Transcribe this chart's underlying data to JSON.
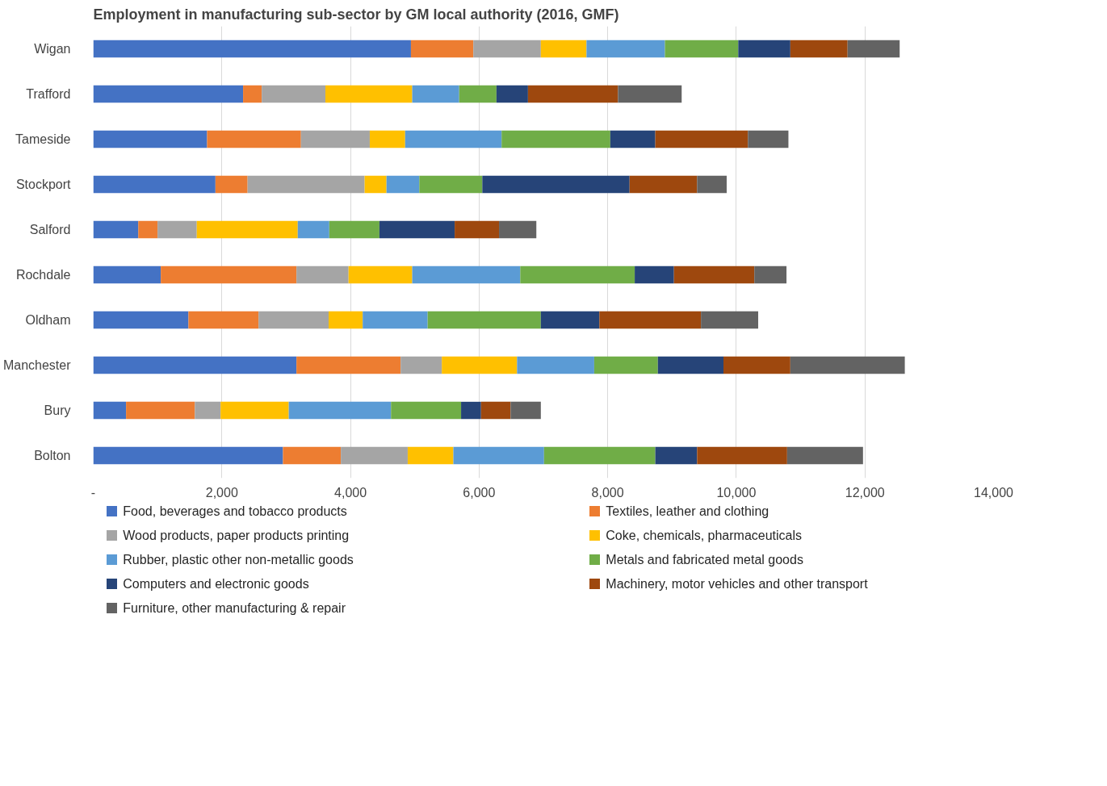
{
  "chart_data": {
    "type": "bar",
    "orientation": "horizontal",
    "stacked": true,
    "title": "Employment in manufacturing sub-sector by GM local authority (2016, GMF)",
    "categories": [
      "Wigan",
      "Trafford",
      "Tameside",
      "Stockport",
      "Salford",
      "Rochdale",
      "Oldham",
      "Manchester",
      "Bury",
      "Bolton"
    ],
    "xlim": [
      0,
      14000
    ],
    "xticks": [
      {
        "value": 0,
        "label": "-"
      },
      {
        "value": 2000,
        "label": "2,000"
      },
      {
        "value": 4000,
        "label": "4,000"
      },
      {
        "value": 6000,
        "label": "6,000"
      },
      {
        "value": 8000,
        "label": "8,000"
      },
      {
        "value": 10000,
        "label": "10,000"
      },
      {
        "value": 12000,
        "label": "12,000"
      },
      {
        "value": 14000,
        "label": "14,000"
      }
    ],
    "grid": "x",
    "legend": "bottom",
    "series": [
      {
        "name": "Food, beverages and tobacco products",
        "color": "#4472c4",
        "values": [
          4940,
          2330,
          1770,
          1900,
          700,
          1050,
          1480,
          3160,
          510,
          2950
        ]
      },
      {
        "name": "Textiles, leather and clothing",
        "color": "#ed7d31",
        "values": [
          970,
          290,
          1460,
          500,
          300,
          2110,
          1090,
          1620,
          1070,
          900
        ]
      },
      {
        "name": "Wood products, paper products printing",
        "color": "#a5a5a5",
        "values": [
          1050,
          990,
          1070,
          1820,
          610,
          810,
          1090,
          640,
          400,
          1040
        ]
      },
      {
        "name": "Coke, chemicals, pharmaceuticals",
        "color": "#ffc000",
        "values": [
          710,
          1350,
          550,
          340,
          1570,
          990,
          530,
          1170,
          1060,
          710
        ]
      },
      {
        "name": "Rubber, plastic other non-metallic goods",
        "color": "#5b9bd5",
        "values": [
          1220,
          730,
          1500,
          510,
          490,
          1680,
          1010,
          1200,
          1590,
          1410
        ]
      },
      {
        "name": "Metals and fabricated metal goods",
        "color": "#70ad47",
        "values": [
          1140,
          580,
          1690,
          980,
          780,
          1780,
          1760,
          990,
          1090,
          1730
        ]
      },
      {
        "name": "Computers and electronic goods",
        "color": "#264478",
        "values": [
          810,
          490,
          700,
          2290,
          1170,
          610,
          910,
          1020,
          310,
          650
        ]
      },
      {
        "name": "Machinery, motor vehicles and other transport",
        "color": "#9e480e",
        "values": [
          890,
          1400,
          1440,
          1050,
          690,
          1250,
          1580,
          1040,
          460,
          1400
        ]
      },
      {
        "name": "Furniture, other manufacturing & repair",
        "color": "#636363",
        "values": [
          810,
          990,
          630,
          460,
          580,
          500,
          890,
          1780,
          470,
          1180
        ]
      }
    ]
  }
}
